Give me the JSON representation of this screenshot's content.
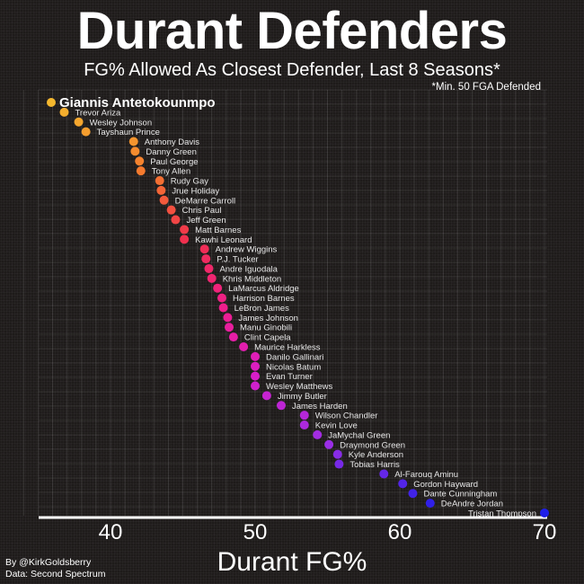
{
  "header": {
    "title": "Durant Defenders",
    "subtitle": "FG% Allowed As Closest Defender, Last 8 Seasons*",
    "footnote": "*Min. 50 FGA Defended"
  },
  "credits": {
    "author": "By @KirkGoldsberry",
    "source": "Data: Second Spectrum"
  },
  "chart_data": {
    "type": "scatter",
    "title": "Durant Defenders",
    "subtitle": "FG% Allowed As Closest Defender, Last 8 Seasons*",
    "xlabel": "Durant FG%",
    "ylabel": "",
    "xlim": [
      33.5,
      70.5
    ],
    "xticks": [
      40,
      50,
      60,
      70
    ],
    "grid": true,
    "legend": "none",
    "color_scale": [
      "#f5b82e",
      "#f57a2e",
      "#f0304e",
      "#ee1e8c",
      "#d81ec8",
      "#9a2ee6",
      "#1e1ee8"
    ],
    "points": [
      {
        "name": "Giannis Antetokounmpo",
        "x": 35.9,
        "highlight": true
      },
      {
        "name": "Trevor Ariza",
        "x": 36.8
      },
      {
        "name": "Wesley Johnson",
        "x": 37.8
      },
      {
        "name": "Tayshaun Prince",
        "x": 38.3
      },
      {
        "name": "Anthony Davis",
        "x": 41.6
      },
      {
        "name": "Danny Green",
        "x": 41.7
      },
      {
        "name": "Paul George",
        "x": 42.0
      },
      {
        "name": "Tony Allen",
        "x": 42.1
      },
      {
        "name": "Rudy Gay",
        "x": 43.4
      },
      {
        "name": "Jrue Holiday",
        "x": 43.5
      },
      {
        "name": "DeMarre Carroll",
        "x": 43.7
      },
      {
        "name": "Chris Paul",
        "x": 44.2
      },
      {
        "name": "Jeff Green",
        "x": 44.5
      },
      {
        "name": "Matt Barnes",
        "x": 45.1
      },
      {
        "name": "Kawhi Leonard",
        "x": 45.1
      },
      {
        "name": "Andrew Wiggins",
        "x": 46.5
      },
      {
        "name": "P.J. Tucker",
        "x": 46.6
      },
      {
        "name": "Andre Iguodala",
        "x": 46.8
      },
      {
        "name": "Khris Middleton",
        "x": 47.0
      },
      {
        "name": "LaMarcus Aldridge",
        "x": 47.4
      },
      {
        "name": "Harrison Barnes",
        "x": 47.7
      },
      {
        "name": "LeBron James",
        "x": 47.8
      },
      {
        "name": "James Johnson",
        "x": 48.1
      },
      {
        "name": "Manu Ginobili",
        "x": 48.2
      },
      {
        "name": "Clint Capela",
        "x": 48.5
      },
      {
        "name": "Maurice Harkless",
        "x": 49.2
      },
      {
        "name": "Danilo Gallinari",
        "x": 50.0
      },
      {
        "name": "Nicolas Batum",
        "x": 50.0
      },
      {
        "name": "Evan Turner",
        "x": 50.0
      },
      {
        "name": "Wesley Matthews",
        "x": 50.0
      },
      {
        "name": "Jimmy Butler",
        "x": 50.8
      },
      {
        "name": "James Harden",
        "x": 51.8
      },
      {
        "name": "Wilson Chandler",
        "x": 53.4
      },
      {
        "name": "Kevin Love",
        "x": 53.4
      },
      {
        "name": "JaMychal Green",
        "x": 54.3
      },
      {
        "name": "Draymond Green",
        "x": 55.1
      },
      {
        "name": "Kyle Anderson",
        "x": 55.7
      },
      {
        "name": "Tobias Harris",
        "x": 55.8
      },
      {
        "name": "Al-Farouq Aminu",
        "x": 58.9
      },
      {
        "name": "Gordon Hayward",
        "x": 60.2
      },
      {
        "name": "Dante Cunningham",
        "x": 60.9
      },
      {
        "name": "DeAndre Jordan",
        "x": 62.1
      },
      {
        "name": "Tristan Thompson",
        "x": 70.0,
        "label_side": "left"
      }
    ]
  }
}
